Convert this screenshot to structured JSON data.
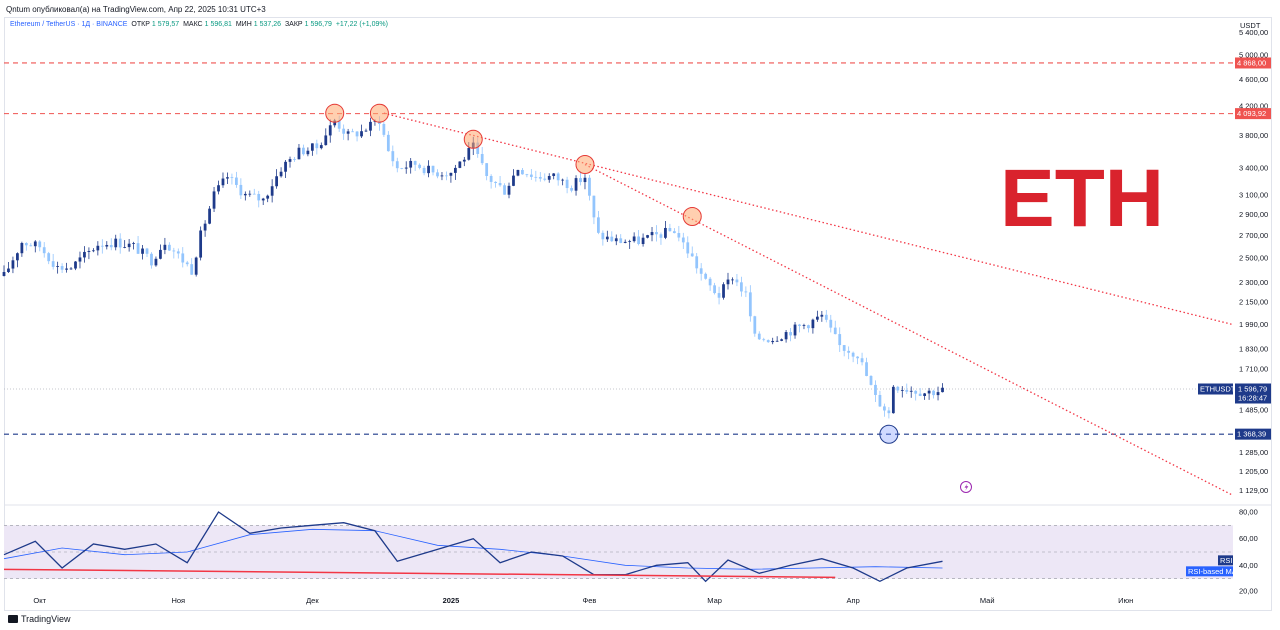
{
  "header": {
    "publisher_line": "Qntum опубликовал(а) на TradingView.com, Апр 22, 2025 10:31 UTC+3"
  },
  "legend": {
    "symbol": "Ethereum / TetherUS · 1Д · BINANCE",
    "open_label": "ОТКР",
    "open_value": "1 579,57",
    "high_label": "МАКС",
    "high_value": "1 596,81",
    "low_label": "МИН",
    "low_value": "1 537,26",
    "close_label": "ЗАКР",
    "close_value": "1 596,79",
    "change": "+17,22 (+1,09%)"
  },
  "branding": {
    "watermark": "ETH",
    "watermark_color": "#d9232d",
    "footer": "TradingView"
  },
  "colors": {
    "up_candle": "#1e3a8a",
    "down_candle": "#93c5fd",
    "resistance_line": "#ef5350",
    "support_line": "#1e3a8a",
    "trendline": "#f23645",
    "rsi_line": "#1e3a8a",
    "rsi_ma_line": "#2962ff",
    "rsi_band": "#ede7f6"
  },
  "chart_data": [
    {
      "type": "candlestick",
      "currency": "USDT",
      "scale": "log",
      "ylim": [
        1100,
        5600
      ],
      "y_ticks": [
        "5 400,00",
        "5 000,00",
        "4 600,00",
        "4 200,00",
        "3 800,00",
        "3 400,00",
        "3 100,00",
        "2 900,00",
        "2 700,00",
        "2 500,00",
        "2 300,00",
        "2 150,00",
        "1 990,00",
        "1 830,00",
        "1 710,00",
        "1 485,00",
        "1 285,00",
        "1 205,00",
        "1 129,00"
      ],
      "y_tick_values": [
        5400,
        5000,
        4600,
        4200,
        3800,
        3400,
        3100,
        2900,
        2700,
        2500,
        2300,
        2150,
        1990,
        1830,
        1710,
        1485,
        1285,
        1205,
        1129
      ],
      "x_labels": [
        "Окт",
        "Ноя",
        "Дек",
        "2025",
        "Фев",
        "Мар",
        "Апр",
        "Май",
        "Июн"
      ],
      "x_label_dates": [
        "2024-10-01",
        "2024-11-01",
        "2024-12-01",
        "2025-01-01",
        "2025-02-01",
        "2025-03-01",
        "2025-04-01",
        "2025-05-01",
        "2025-06-01"
      ],
      "date_range": [
        "2024-09-23",
        "2025-06-25"
      ],
      "levels": [
        {
          "value": 4868,
          "label": "4 868,00",
          "style": "dashed",
          "color": "#ef5350"
        },
        {
          "value": 4093.92,
          "label": "4 093,92",
          "style": "dashed",
          "color": "#ef5350"
        },
        {
          "value": 1368.39,
          "label": "1 368,39",
          "style": "dashed",
          "color": "#1e3a8a"
        }
      ],
      "current_price": {
        "symbol": "ETHUSDT",
        "value": "1 596,79",
        "countdown": "16:28:47",
        "raw": 1596.79
      },
      "trendlines": [
        {
          "from": [
            "2024-12-17",
            4100
          ],
          "to": [
            "2025-06-25",
            1990
          ]
        },
        {
          "from": [
            "2025-01-31",
            3440
          ],
          "to": [
            "2025-06-25",
            1110
          ]
        }
      ],
      "highlighted_highs": [
        {
          "date": "2024-12-06",
          "value": 4100
        },
        {
          "date": "2024-12-16",
          "value": 4100
        },
        {
          "date": "2025-01-06",
          "value": 3750
        },
        {
          "date": "2025-01-31",
          "value": 3440
        },
        {
          "date": "2025-02-24",
          "value": 2880
        }
      ],
      "highlighted_low": {
        "date": "2025-04-09",
        "value": 1368
      },
      "price_path": [
        [
          "2024-09-23",
          2350
        ],
        [
          "2024-09-27",
          2640
        ],
        [
          "2024-10-01",
          2600
        ],
        [
          "2024-10-05",
          2420
        ],
        [
          "2024-10-08",
          2420
        ],
        [
          "2024-10-14",
          2620
        ],
        [
          "2024-10-18",
          2640
        ],
        [
          "2024-10-22",
          2600
        ],
        [
          "2024-10-26",
          2480
        ],
        [
          "2024-10-29",
          2650
        ],
        [
          "2024-11-01",
          2520
        ],
        [
          "2024-11-04",
          2400
        ],
        [
          "2024-11-06",
          2700
        ],
        [
          "2024-11-09",
          3100
        ],
        [
          "2024-11-12",
          3300
        ],
        [
          "2024-11-16",
          3100
        ],
        [
          "2024-11-20",
          3050
        ],
        [
          "2024-11-24",
          3400
        ],
        [
          "2024-11-28",
          3600
        ],
        [
          "2024-12-02",
          3650
        ],
        [
          "2024-12-06",
          4000
        ],
        [
          "2024-12-09",
          3800
        ],
        [
          "2024-12-12",
          3850
        ],
        [
          "2024-12-16",
          4010
        ],
        [
          "2024-12-18",
          3600
        ],
        [
          "2024-12-20",
          3400
        ],
        [
          "2024-12-24",
          3450
        ],
        [
          "2024-12-28",
          3350
        ],
        [
          "2025-01-01",
          3350
        ],
        [
          "2025-01-06",
          3650
        ],
        [
          "2025-01-09",
          3300
        ],
        [
          "2025-01-13",
          3150
        ],
        [
          "2025-01-16",
          3400
        ],
        [
          "2025-01-20",
          3300
        ],
        [
          "2025-01-24",
          3300
        ],
        [
          "2025-01-28",
          3200
        ],
        [
          "2025-01-31",
          3300
        ],
        [
          "2025-02-02",
          2850
        ],
        [
          "2025-02-03",
          2700
        ],
        [
          "2025-02-07",
          2650
        ],
        [
          "2025-02-12",
          2650
        ],
        [
          "2025-02-16",
          2700
        ],
        [
          "2025-02-20",
          2750
        ],
        [
          "2025-02-24",
          2500
        ],
        [
          "2025-02-27",
          2300
        ],
        [
          "2025-03-02",
          2200
        ],
        [
          "2025-03-05",
          2350
        ],
        [
          "2025-03-08",
          2200
        ],
        [
          "2025-03-10",
          1900
        ],
        [
          "2025-03-14",
          1900
        ],
        [
          "2025-03-18",
          1950
        ],
        [
          "2025-03-22",
          2000
        ],
        [
          "2025-03-25",
          2050
        ],
        [
          "2025-03-29",
          1850
        ],
        [
          "2025-04-02",
          1800
        ],
        [
          "2025-04-06",
          1550
        ],
        [
          "2025-04-09",
          1470
        ],
        [
          "2025-04-10",
          1620
        ],
        [
          "2025-04-13",
          1600
        ],
        [
          "2025-04-17",
          1580
        ],
        [
          "2025-04-21",
          1590
        ]
      ]
    },
    {
      "type": "line",
      "indicator": "RSI",
      "ylim": [
        20,
        80
      ],
      "y_ticks": [
        "80,00",
        "60,00",
        "40,00",
        "20,00"
      ],
      "y_tick_values": [
        80,
        60,
        40,
        20
      ],
      "band": [
        30,
        70
      ],
      "series": [
        {
          "name": "RSI",
          "points": [
            [
              "2024-09-23",
              48
            ],
            [
              "2024-09-30",
              58
            ],
            [
              "2024-10-06",
              38
            ],
            [
              "2024-10-13",
              56
            ],
            [
              "2024-10-20",
              52
            ],
            [
              "2024-10-27",
              56
            ],
            [
              "2024-11-03",
              42
            ],
            [
              "2024-11-10",
              80
            ],
            [
              "2024-11-17",
              64
            ],
            [
              "2024-11-24",
              68
            ],
            [
              "2024-12-01",
              70
            ],
            [
              "2024-12-08",
              72
            ],
            [
              "2024-12-15",
              66
            ],
            [
              "2024-12-20",
              43
            ],
            [
              "2024-12-27",
              50
            ],
            [
              "2025-01-06",
              60
            ],
            [
              "2025-01-12",
              42
            ],
            [
              "2025-01-19",
              50
            ],
            [
              "2025-01-26",
              47
            ],
            [
              "2025-02-02",
              33
            ],
            [
              "2025-02-09",
              33
            ],
            [
              "2025-02-16",
              40
            ],
            [
              "2025-02-23",
              42
            ],
            [
              "2025-02-27",
              28
            ],
            [
              "2025-03-04",
              44
            ],
            [
              "2025-03-11",
              34
            ],
            [
              "2025-03-18",
              40
            ],
            [
              "2025-03-25",
              45
            ],
            [
              "2025-04-01",
              38
            ],
            [
              "2025-04-07",
              28
            ],
            [
              "2025-04-13",
              38
            ],
            [
              "2025-04-21",
              43
            ]
          ]
        },
        {
          "name": "RSI-based MA",
          "points": [
            [
              "2024-09-23",
              45
            ],
            [
              "2024-10-06",
              53
            ],
            [
              "2024-10-20",
              48
            ],
            [
              "2024-11-03",
              50
            ],
            [
              "2024-11-17",
              63
            ],
            [
              "2024-12-01",
              67
            ],
            [
              "2024-12-15",
              66
            ],
            [
              "2024-12-29",
              55
            ],
            [
              "2025-01-12",
              52
            ],
            [
              "2025-01-26",
              47
            ],
            [
              "2025-02-09",
              40
            ],
            [
              "2025-02-23",
              38
            ],
            [
              "2025-03-09",
              37
            ],
            [
              "2025-03-23",
              38
            ],
            [
              "2025-04-06",
              39
            ],
            [
              "2025-04-21",
              38
            ]
          ]
        }
      ],
      "trendline": {
        "from": [
          "2024-09-23",
          37
        ],
        "to": [
          "2025-03-28",
          31
        ]
      },
      "tags": [
        "RSI",
        "RSI-based MA"
      ]
    }
  ]
}
